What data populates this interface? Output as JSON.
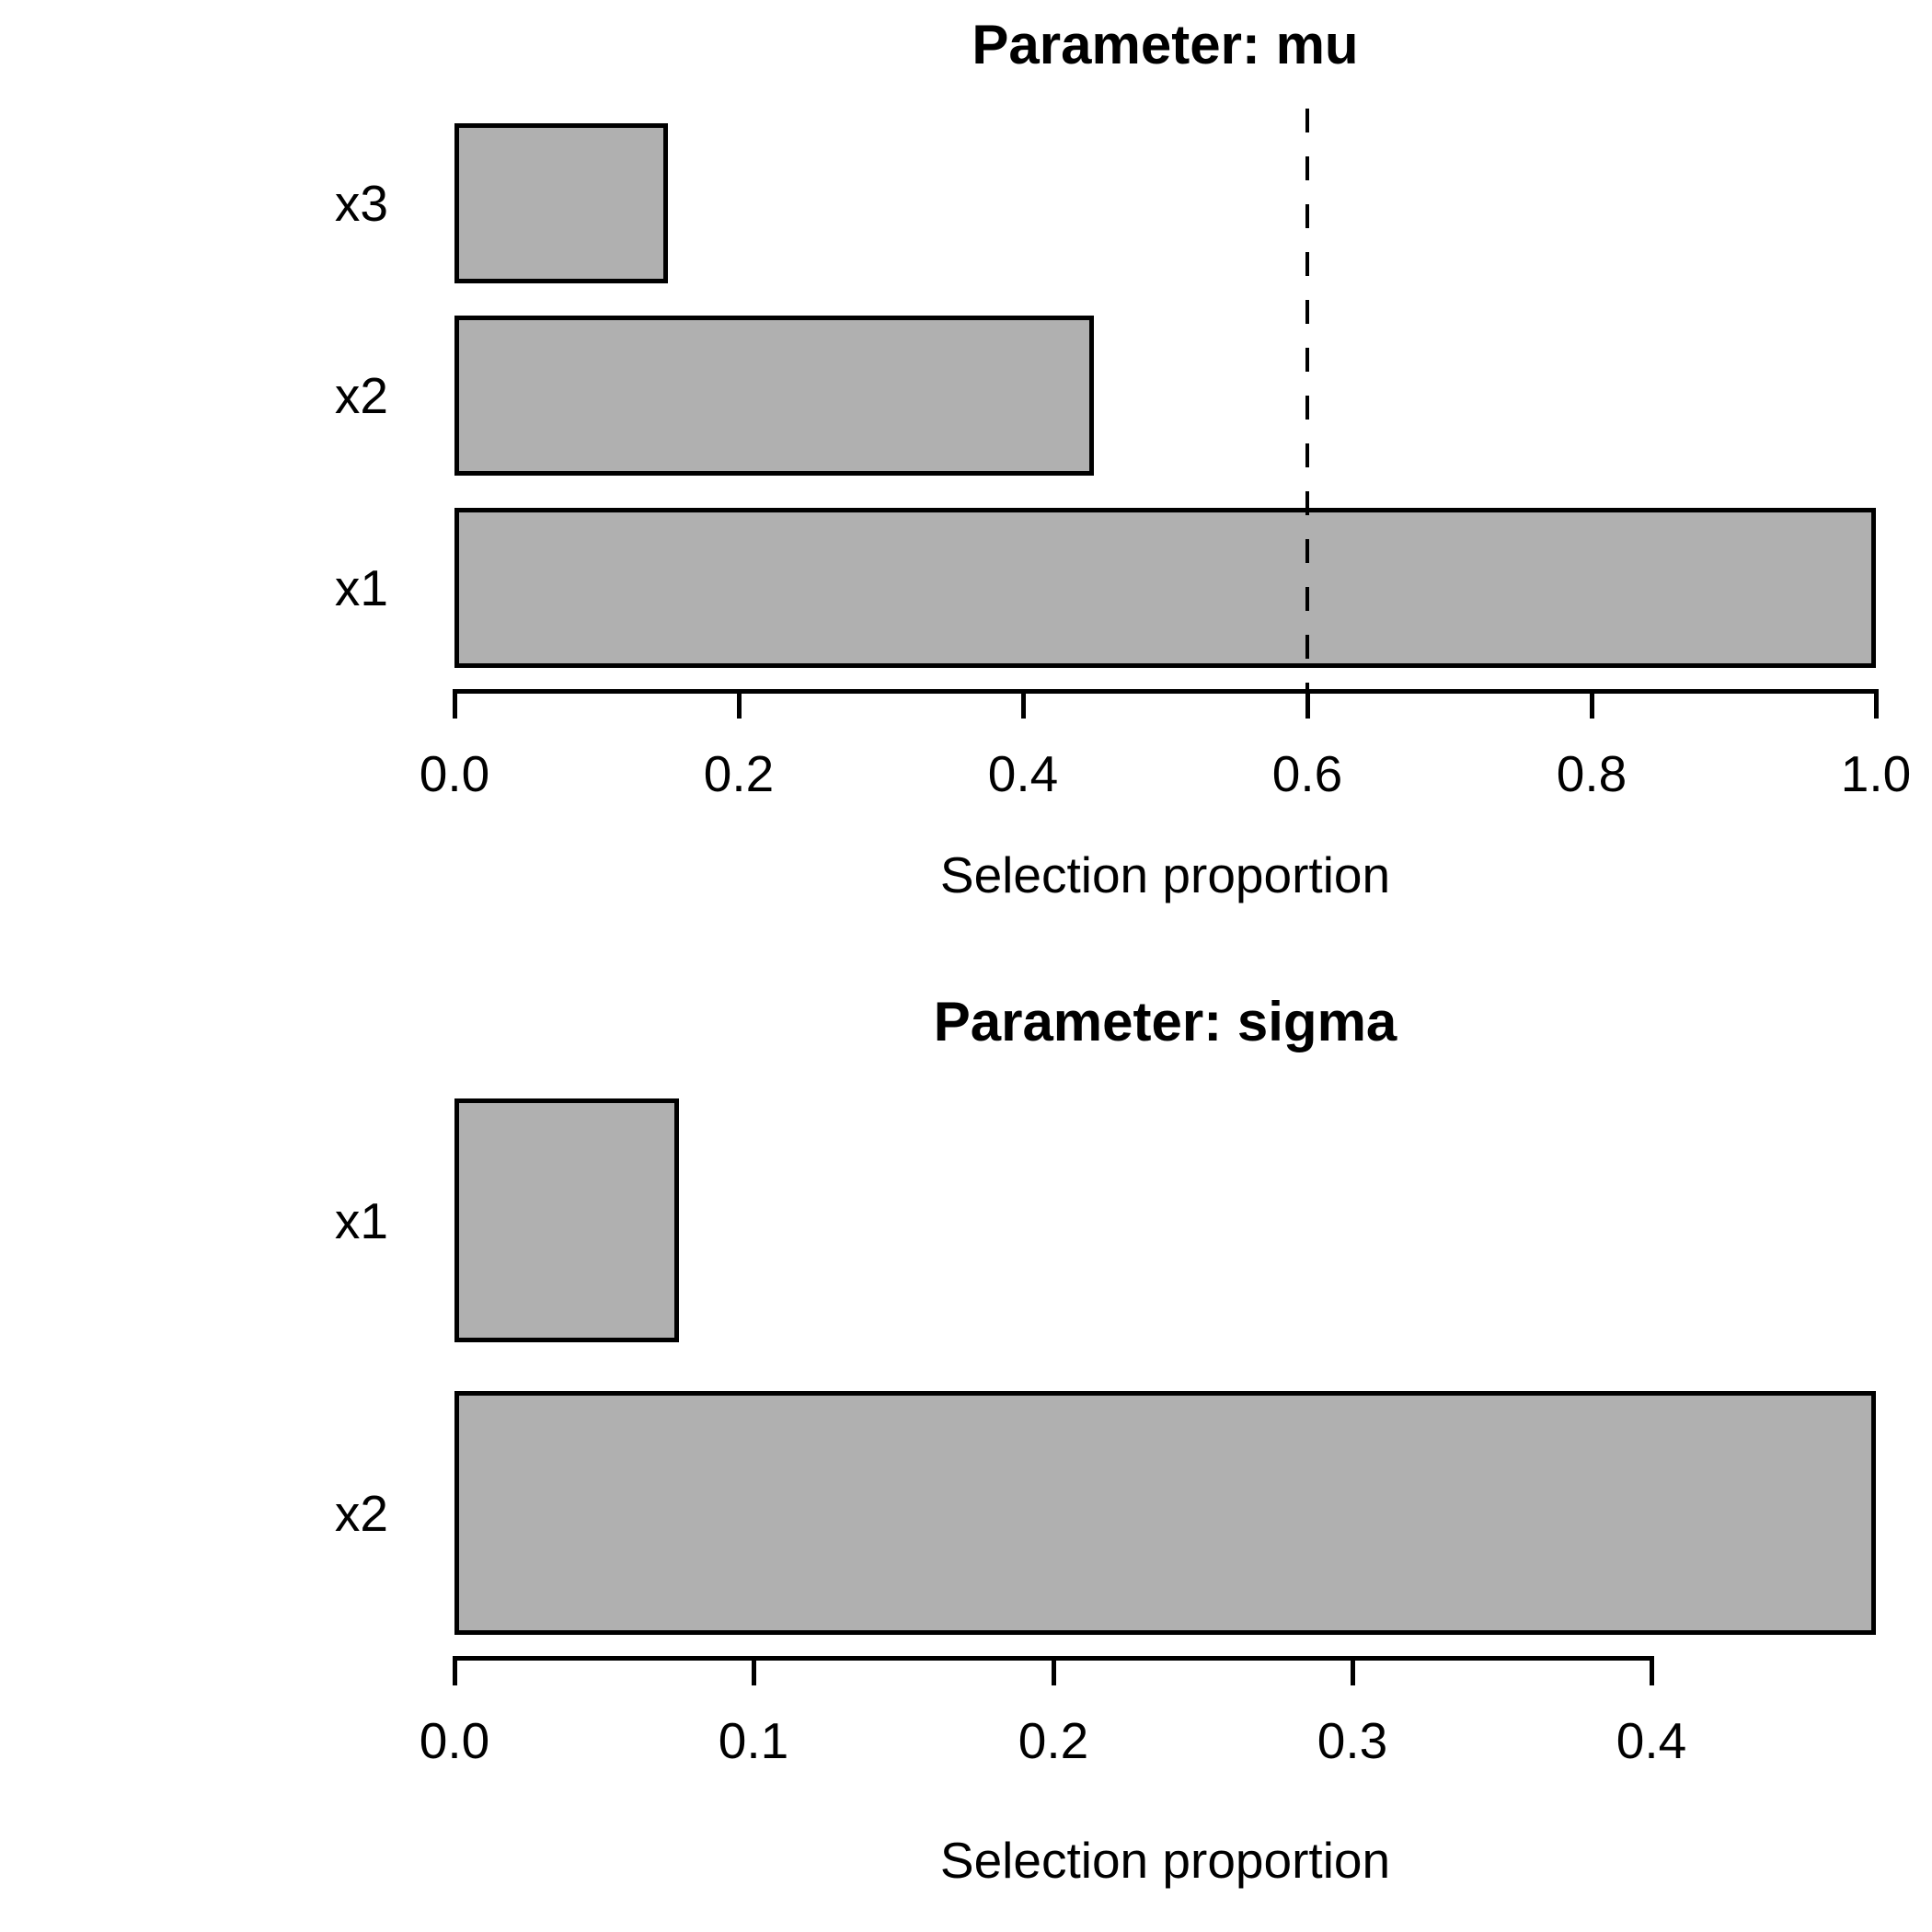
{
  "figure": {
    "background": "#ffffff",
    "text_color": "#000000",
    "bar_fill": "#b0b0b0",
    "bar_border": "#000000"
  },
  "chart_data": [
    {
      "type": "bar",
      "orientation": "horizontal",
      "title": "Parameter: mu",
      "xlabel": "Selection proportion",
      "ylabel": "",
      "categories": [
        "x1",
        "x2",
        "x3"
      ],
      "category_order": "bottom-to-top",
      "values": [
        1.0,
        0.45,
        0.15
      ],
      "xlim": [
        0,
        1.0
      ],
      "xticks": [
        0,
        0.2,
        0.4,
        0.6,
        0.8,
        1.0
      ],
      "xtick_labels": [
        "0.0",
        "0.2",
        "0.4",
        "0.6",
        "0.8",
        "1.0"
      ],
      "cutoff_line": {
        "value": 0.6,
        "style": "dashed",
        "color": "#000000"
      },
      "bar_fill": "#b0b0b0",
      "bar_border": "#000000",
      "grid": false,
      "legend": null
    },
    {
      "type": "bar",
      "orientation": "horizontal",
      "title": "Parameter: sigma",
      "xlabel": "Selection proportion",
      "ylabel": "",
      "categories": [
        "x2",
        "x1"
      ],
      "category_order": "bottom-to-top",
      "values": [
        0.475,
        0.075
      ],
      "xlim": [
        0,
        0.475
      ],
      "xticks": [
        0,
        0.1,
        0.2,
        0.3,
        0.4
      ],
      "xtick_labels": [
        "0.0",
        "0.1",
        "0.2",
        "0.3",
        "0.4"
      ],
      "cutoff_line": null,
      "bar_fill": "#b0b0b0",
      "bar_border": "#000000",
      "grid": false,
      "legend": null
    }
  ]
}
